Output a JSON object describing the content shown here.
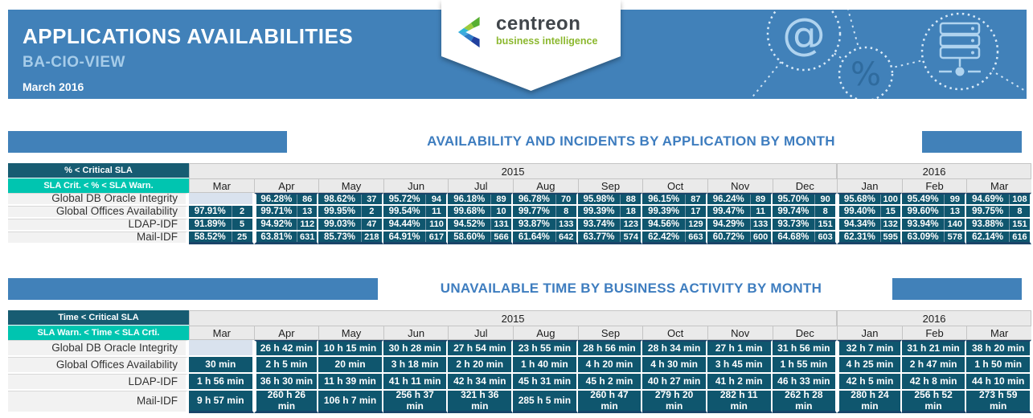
{
  "report": {
    "title": "APPLICATIONS AVAILABILITIES",
    "subtitle": "BA-CIO-VIEW",
    "period": "March 2016",
    "logo": {
      "name": "centreon",
      "tagline": "business intelligence"
    },
    "header_icons": [
      "at-icon",
      "percent-icon",
      "server-icon"
    ],
    "colors": {
      "band_blue": "#4181B9",
      "subtitle_blue": "#A6CCE9",
      "section_title_blue": "#3E7DBF",
      "legend_critical_bg": "#175C72",
      "legend_warning_bg": "#00C5B0",
      "data_cell_bg": "#0F566E",
      "empty_cell_bg": "#D9E2EE",
      "logo_green": "#8CB82F"
    }
  },
  "sections": [
    {
      "title": "AVAILABILITY AND INCIDENTS BY APPLICATION BY MONTH",
      "legend_critical": "% < Critical SLA",
      "legend_warning": "SLA Crit. < % < SLA Warn.",
      "years": [
        {
          "label": "2015",
          "span": 10
        },
        {
          "label": "2016",
          "span": 3
        }
      ],
      "months": [
        "Mar",
        "Apr",
        "May",
        "Jun",
        "Jul",
        "Aug",
        "Sep",
        "Oct",
        "Nov",
        "Dec",
        "Jan",
        "Feb",
        "Mar"
      ],
      "cell_format": "percent_and_incidents",
      "rows": [
        {
          "label": "Global DB Oracle Integrity",
          "cells": [
            null,
            [
              "96.28%",
              "86"
            ],
            [
              "98.62%",
              "37"
            ],
            [
              "95.72%",
              "94"
            ],
            [
              "96.18%",
              "89"
            ],
            [
              "96.78%",
              "70"
            ],
            [
              "95.98%",
              "88"
            ],
            [
              "96.15%",
              "87"
            ],
            [
              "96.24%",
              "89"
            ],
            [
              "95.70%",
              "90"
            ],
            [
              "95.68%",
              "100"
            ],
            [
              "95.49%",
              "99"
            ],
            [
              "94.69%",
              "108"
            ]
          ]
        },
        {
          "label": "Global Offices Availability",
          "cells": [
            [
              "97.91%",
              "2"
            ],
            [
              "99.71%",
              "13"
            ],
            [
              "99.95%",
              "2"
            ],
            [
              "99.54%",
              "11"
            ],
            [
              "99.68%",
              "10"
            ],
            [
              "99.77%",
              "8"
            ],
            [
              "99.39%",
              "18"
            ],
            [
              "99.39%",
              "17"
            ],
            [
              "99.47%",
              "11"
            ],
            [
              "99.74%",
              "8"
            ],
            [
              "99.40%",
              "15"
            ],
            [
              "99.60%",
              "13"
            ],
            [
              "99.75%",
              "8"
            ]
          ]
        },
        {
          "label": "LDAP-IDF",
          "cells": [
            [
              "91.89%",
              "5"
            ],
            [
              "94.92%",
              "112"
            ],
            [
              "99.03%",
              "47"
            ],
            [
              "94.44%",
              "110"
            ],
            [
              "94.52%",
              "131"
            ],
            [
              "93.87%",
              "133"
            ],
            [
              "93.74%",
              "123"
            ],
            [
              "94.56%",
              "129"
            ],
            [
              "94.29%",
              "133"
            ],
            [
              "93.73%",
              "151"
            ],
            [
              "94.34%",
              "132"
            ],
            [
              "93.94%",
              "140"
            ],
            [
              "93.88%",
              "151"
            ]
          ]
        },
        {
          "label": "Mail-IDF",
          "cells": [
            [
              "58.52%",
              "25"
            ],
            [
              "63.81%",
              "631"
            ],
            [
              "85.73%",
              "218"
            ],
            [
              "64.91%",
              "617"
            ],
            [
              "58.60%",
              "566"
            ],
            [
              "61.64%",
              "642"
            ],
            [
              "63.77%",
              "574"
            ],
            [
              "62.42%",
              "663"
            ],
            [
              "60.72%",
              "600"
            ],
            [
              "64.68%",
              "603"
            ],
            [
              "62.31%",
              "595"
            ],
            [
              "63.09%",
              "578"
            ],
            [
              "62.14%",
              "616"
            ]
          ]
        }
      ]
    },
    {
      "title": "UNAVAILABLE TIME BY BUSINESS ACTIVITY BY MONTH",
      "legend_critical": "Time < Critical SLA",
      "legend_warning": "SLA Warn. < Time < SLA Crti.",
      "years": [
        {
          "label": "2015",
          "span": 10
        },
        {
          "label": "2016",
          "span": 3
        }
      ],
      "months": [
        "Mar",
        "Apr",
        "May",
        "Jun",
        "Jul",
        "Aug",
        "Sep",
        "Oct",
        "Nov",
        "Dec",
        "Jan",
        "Feb",
        "Mar"
      ],
      "cell_format": "duration",
      "rows": [
        {
          "label": "Global DB Oracle Integrity",
          "cells": [
            null,
            "26 h 42 min",
            "10 h 15 min",
            "30 h 28 min",
            "27 h 54 min",
            "23 h 55 min",
            "28 h 56 min",
            "28 h 34 min",
            "27 h 1 min",
            "31 h 56 min",
            "32 h 7 min",
            "31 h 21 min",
            "38 h 20 min"
          ]
        },
        {
          "label": "Global Offices Availability",
          "cells": [
            "30 min",
            "2 h 5 min",
            "20 min",
            "3 h 18 min",
            "2 h 20 min",
            "1 h 40 min",
            "4 h 20 min",
            "4 h 30 min",
            "3 h 45 min",
            "1 h 55 min",
            "4 h 25 min",
            "2 h 47 min",
            "1 h 50 min"
          ]
        },
        {
          "label": "LDAP-IDF",
          "cells": [
            "1 h 56 min",
            "36 h 30 min",
            "11 h 39 min",
            "41 h 11 min",
            "42 h 34 min",
            "45 h 31 min",
            "45 h 2 min",
            "40 h 27 min",
            "41 h 2 min",
            "46 h 33 min",
            "42 h 5 min",
            "42 h 8 min",
            "44 h 10 min"
          ]
        },
        {
          "label": "Mail-IDF",
          "cells": [
            "9 h 57 min",
            "260 h 26 min",
            "106 h 7 min",
            "256 h 37 min",
            "321 h 36 min",
            "285 h 5 min",
            "260 h 47 min",
            "279 h 20 min",
            "282 h 11 min",
            "262 h 28 min",
            "280 h 24 min",
            "256 h 52 min",
            "273 h 59 min"
          ]
        }
      ]
    }
  ]
}
